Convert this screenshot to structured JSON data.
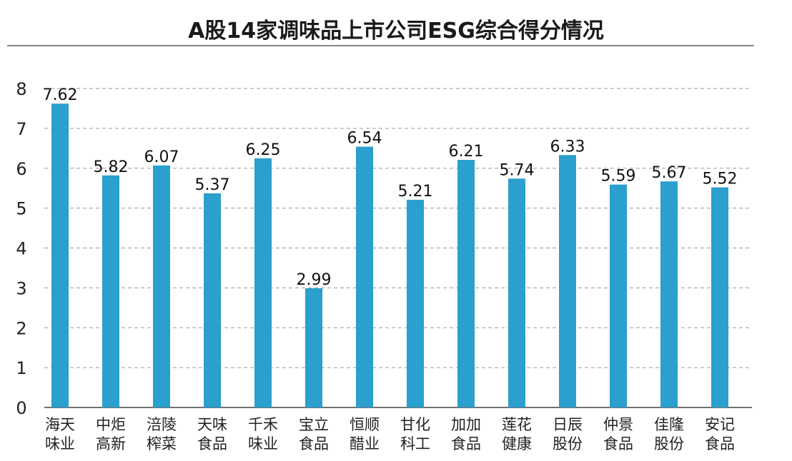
{
  "chart_data": {
    "type": "bar",
    "title": "A股14家调味品上市公司ESG综合得分情况",
    "xlabel": "",
    "ylabel": "",
    "ylim": [
      0,
      8
    ],
    "yticks": [
      0,
      1,
      2,
      3,
      4,
      5,
      6,
      7,
      8
    ],
    "grid": true,
    "legend": "none",
    "bar_color": "#2b9fcd",
    "categories": [
      [
        "海天",
        "味业"
      ],
      [
        "中炬",
        "高新"
      ],
      [
        "涪陵",
        "榨菜"
      ],
      [
        "天味",
        "食品"
      ],
      [
        "千禾",
        "味业"
      ],
      [
        "宝立",
        "食品"
      ],
      [
        "恒顺",
        "醋业"
      ],
      [
        "甘化",
        "科工"
      ],
      [
        "加加",
        "食品"
      ],
      [
        "莲花",
        "健康"
      ],
      [
        "日辰",
        "股份"
      ],
      [
        "仲景",
        "食品"
      ],
      [
        "佳隆",
        "股份"
      ],
      [
        "安记",
        "食品"
      ]
    ],
    "values": [
      7.62,
      5.82,
      6.07,
      5.37,
      6.25,
      2.99,
      6.54,
      5.21,
      6.21,
      5.74,
      6.33,
      5.59,
      5.67,
      5.52
    ],
    "value_labels": [
      "7.62",
      "5.82",
      "6.07",
      "5.37",
      "6.25",
      "2.99",
      "6.54",
      "5.21",
      "6.21",
      "5.74",
      "6.33",
      "5.59",
      "5.67",
      "5.52"
    ]
  }
}
